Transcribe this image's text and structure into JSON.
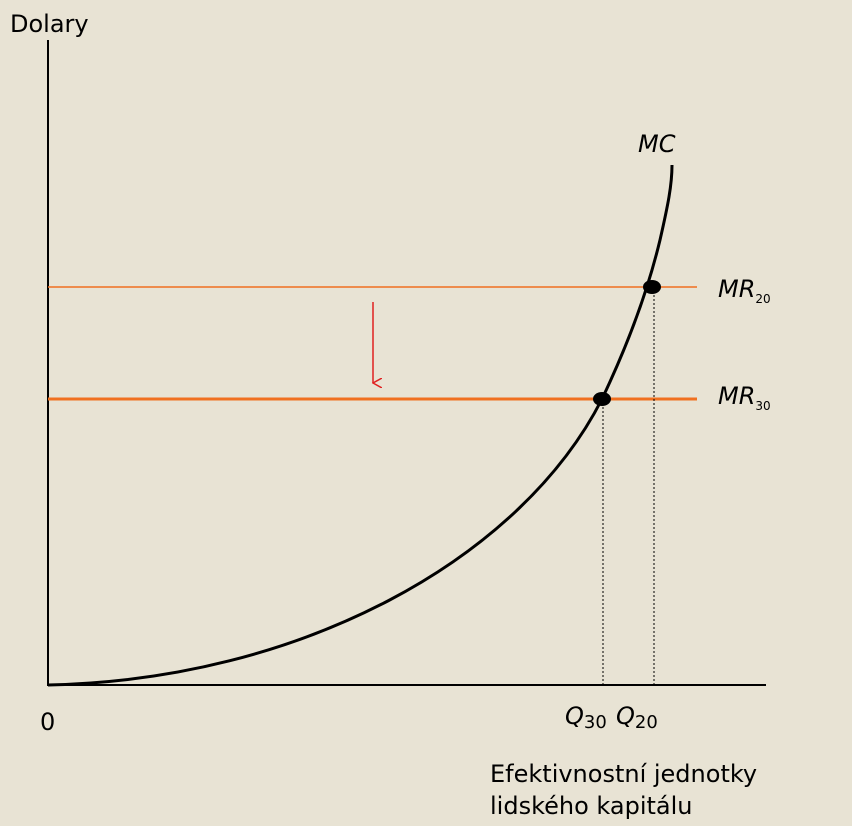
{
  "axis": {
    "y_label": "Dolary",
    "origin": "0",
    "x_label": [
      "Efektivnostní jednotky",
      "lidského kapitálu"
    ]
  },
  "curves": {
    "mc": "MC",
    "mr20": {
      "name": "MR",
      "sub": "20"
    },
    "mr30": {
      "name": "MR",
      "sub": "30"
    }
  },
  "points": {
    "q30": {
      "name": "Q",
      "sub": "30"
    },
    "q20": {
      "name": "Q",
      "sub": "20"
    }
  }
}
